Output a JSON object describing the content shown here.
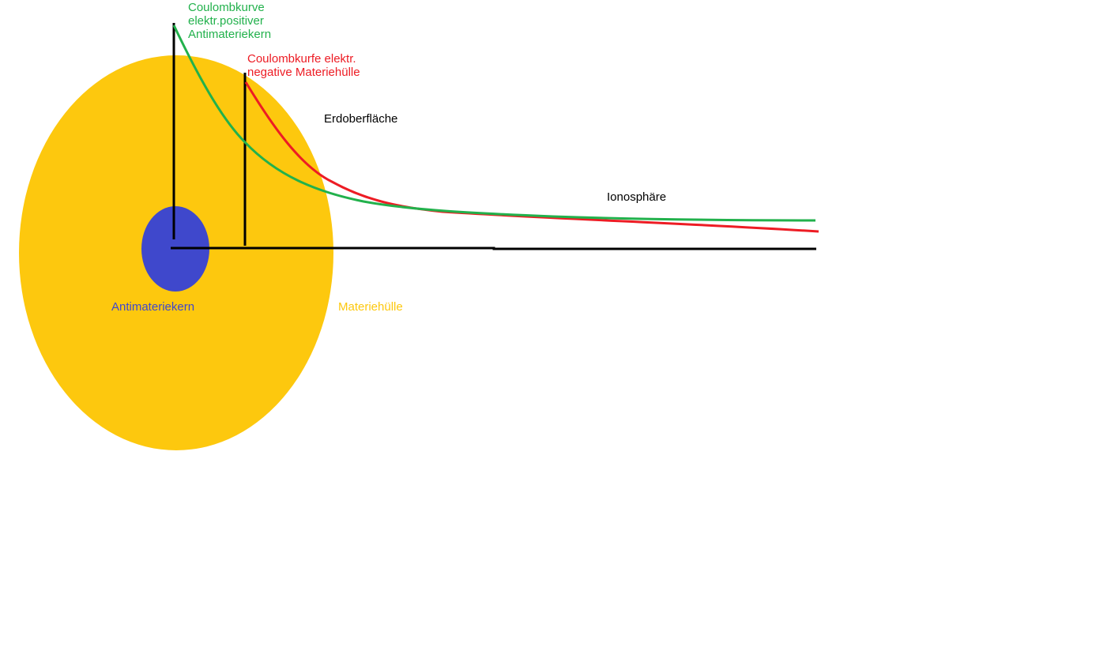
{
  "colors": {
    "shell": "#FDC80E",
    "core": "#3F48CC",
    "positive_curve": "#22B14C",
    "negative_curve": "#ED1C24",
    "axis": "#000000",
    "text_dark": "#000000"
  },
  "labels": {
    "positive_curve": [
      "Coulombkurve",
      "elektr.positiver",
      "Antimateriekern"
    ],
    "negative_curve": [
      "Coulombkurfe elektr.",
      "negative Materiehülle"
    ],
    "surface": "Erdoberfläche",
    "ionosphere": "Ionosphäre",
    "core": "Antimateriekern",
    "shell": "Materiehülle"
  }
}
